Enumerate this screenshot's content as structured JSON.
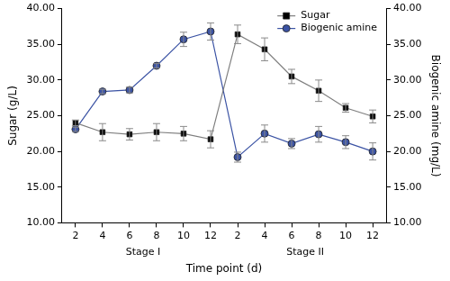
{
  "chart_data": {
    "type": "line",
    "categories": [
      "2",
      "4",
      "6",
      "8",
      "10",
      "12",
      "2",
      "4",
      "6",
      "8",
      "10",
      "12"
    ],
    "annotations": [
      "Stage I",
      "Stage II"
    ],
    "x_label": "Time point (d)",
    "y_label": "Sugar (g/L)",
    "y2_label": "Biogenic amine (mg/L)",
    "series": [
      {
        "name": "Sugar",
        "color": "#000000",
        "marker": "square",
        "line_style": "solid",
        "values": [
          24.0,
          22.7,
          22.4,
          22.7,
          22.5,
          21.7,
          36.4,
          34.3,
          30.5,
          28.5,
          26.1,
          24.9
        ],
        "errors": [
          0.4,
          1.2,
          0.8,
          1.2,
          1.0,
          1.2,
          1.3,
          1.6,
          1.0,
          1.5,
          0.6,
          0.9
        ]
      },
      {
        "name": "Biogenic amine",
        "color": "#3b53a4",
        "marker": "circle",
        "line_style": "solid",
        "axis": "y2",
        "values": [
          23.1,
          28.4,
          28.6,
          32.0,
          35.7,
          36.8,
          19.2,
          22.5,
          21.1,
          22.4,
          21.3,
          20.0
        ],
        "errors": [
          0.3,
          0.3,
          0.4,
          0.3,
          1.0,
          1.2,
          0.7,
          1.2,
          0.7,
          1.1,
          0.9,
          1.2
        ]
      }
    ],
    "ylim": [
      10,
      40
    ],
    "yticks": [
      {
        "value": 10,
        "label": "10.00"
      },
      {
        "value": 15,
        "label": "15.00"
      },
      {
        "value": 20,
        "label": "20.00"
      },
      {
        "value": 25,
        "label": "25.00"
      },
      {
        "value": 30,
        "label": "30.00"
      },
      {
        "value": 35,
        "label": "35.00"
      },
      {
        "value": 40,
        "label": "40.00"
      }
    ],
    "y2lim": [
      10,
      40
    ],
    "y2ticks": [
      {
        "value": 10,
        "label": "10.00"
      },
      {
        "value": 15,
        "label": "15.00"
      },
      {
        "value": 20,
        "label": "20.00"
      },
      {
        "value": 25,
        "label": "25.00"
      },
      {
        "value": 30,
        "label": "30.00"
      },
      {
        "value": 35,
        "label": "35.00"
      },
      {
        "value": 40,
        "label": "40.00"
      }
    ],
    "grid": false,
    "legend": "top-right"
  }
}
